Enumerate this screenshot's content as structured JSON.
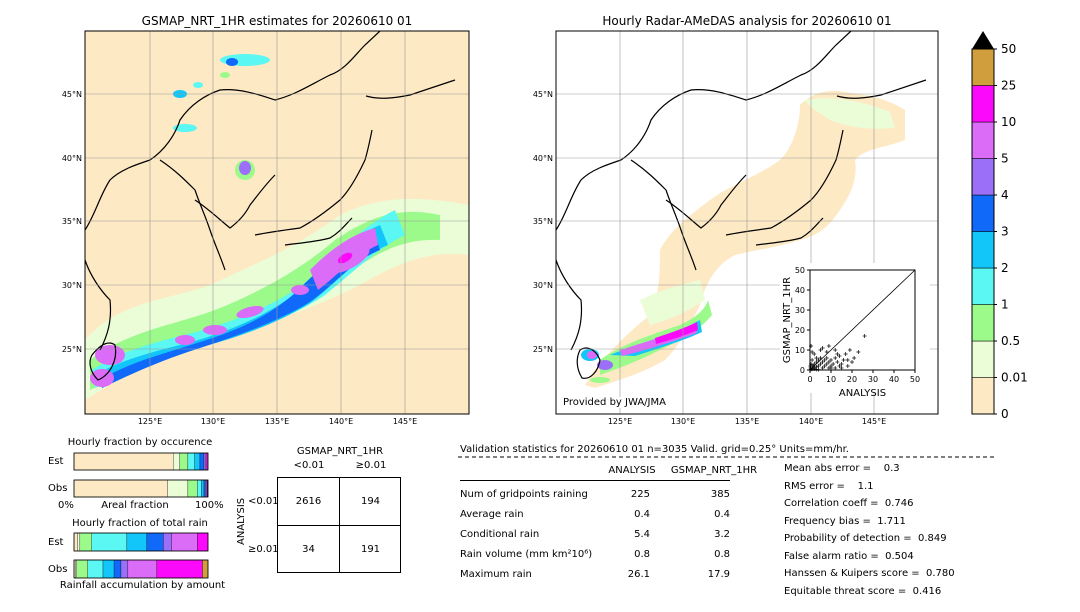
{
  "maps": {
    "left_title": "GSMAP_NRT_1HR estimates for 20260610 01",
    "right_title": "Hourly Radar-AMeDAS analysis for 20260610 01",
    "credit": "Provided by JWA/JMA",
    "lat_labels": [
      "45°N",
      "40°N",
      "35°N",
      "30°N",
      "25°N"
    ],
    "lon_labels": [
      "125°E",
      "130°E",
      "135°E",
      "140°E",
      "145°E"
    ],
    "ocean_color": "#fde9c4"
  },
  "colorbar": {
    "levels": [
      "0",
      "0.01",
      "0.5",
      "1",
      "2",
      "3",
      "4",
      "5",
      "10",
      "25",
      "50"
    ],
    "colors": [
      "#fde9c4",
      "#ebfdd7",
      "#9cfa8b",
      "#5bf7f2",
      "#13c6fa",
      "#1169fa",
      "#9c6ff8",
      "#da6cf7",
      "#fb09fa",
      "#d09e3c"
    ],
    "extend_color": "#000000"
  },
  "chart_data": [
    {
      "type": "scatter",
      "title": "",
      "xlabel": "ANALYSIS",
      "ylabel": "GSMAP_NRT_1HR",
      "xlim": [
        0,
        50
      ],
      "ylim": [
        0,
        50
      ],
      "ticks": [
        "0",
        "10",
        "20",
        "30",
        "40",
        "50"
      ],
      "reference_line": "y = x",
      "points": [
        [
          0.5,
          0.3
        ],
        [
          1,
          0.5
        ],
        [
          1.5,
          2
        ],
        [
          2,
          1
        ],
        [
          2,
          3
        ],
        [
          3,
          1.5
        ],
        [
          3,
          4
        ],
        [
          4,
          2
        ],
        [
          4,
          5
        ],
        [
          5,
          3
        ],
        [
          5,
          6
        ],
        [
          6,
          4
        ],
        [
          6,
          1
        ],
        [
          7,
          5
        ],
        [
          7,
          2
        ],
        [
          8,
          3
        ],
        [
          8,
          6
        ],
        [
          9,
          1
        ],
        [
          9,
          4
        ],
        [
          10,
          2
        ],
        [
          10,
          5
        ],
        [
          11,
          3
        ],
        [
          12,
          1
        ],
        [
          12,
          6
        ],
        [
          13,
          4
        ],
        [
          14,
          2
        ],
        [
          14,
          7
        ],
        [
          15,
          3
        ],
        [
          16,
          5
        ],
        [
          17,
          8
        ],
        [
          18,
          2
        ],
        [
          19,
          10
        ],
        [
          20,
          4
        ],
        [
          21,
          6
        ],
        [
          23,
          9
        ],
        [
          26,
          17
        ],
        [
          1,
          2
        ],
        [
          2,
          0.5
        ],
        [
          3,
          0.3
        ],
        [
          4,
          0.2
        ],
        [
          0.3,
          1
        ],
        [
          0.2,
          2
        ],
        [
          0.5,
          3
        ],
        [
          1,
          5
        ],
        [
          2,
          8
        ],
        [
          3,
          6
        ],
        [
          1,
          9
        ],
        [
          0.5,
          12
        ],
        [
          5,
          10
        ],
        [
          6,
          11
        ],
        [
          8,
          9
        ],
        [
          9,
          12
        ],
        [
          12,
          10
        ],
        [
          13,
          8
        ],
        [
          10,
          1
        ],
        [
          15,
          1
        ],
        [
          18,
          5
        ]
      ]
    },
    {
      "type": "bar",
      "title": "Hourly fraction by occurence",
      "categories": [
        "Est",
        "Obs"
      ],
      "xlabel": "Areal fraction",
      "xtick_labels": [
        "0%",
        "100%"
      ],
      "stacked": true,
      "series_colors": [
        "#fde9c4",
        "#ebfdd7",
        "#9cfa8b",
        "#5bf7f2",
        "#13c6fa",
        "#1169fa",
        "#9c6ff8",
        "#da6cf7",
        "#fb09fa",
        "#d09e3c"
      ],
      "values": [
        [
          0.74,
          0.05,
          0.06,
          0.05,
          0.04,
          0.03,
          0.01,
          0.01,
          0.01,
          0.0
        ],
        [
          0.7,
          0.15,
          0.07,
          0.03,
          0.02,
          0.01,
          0.01,
          0.005,
          0.005,
          0.0
        ]
      ]
    },
    {
      "type": "bar",
      "title": "Hourly fraction of total rain",
      "categories": [
        "Est",
        "Obs"
      ],
      "xlabel": "Rainfall accumulation by amount",
      "stacked": true,
      "series_colors": [
        "#fde9c4",
        "#ebfdd7",
        "#9cfa8b",
        "#5bf7f2",
        "#13c6fa",
        "#1169fa",
        "#9c6ff8",
        "#da6cf7",
        "#fb09fa",
        "#d09e3c"
      ],
      "values": [
        [
          0.03,
          0.02,
          0.1,
          0.3,
          0.17,
          0.14,
          0.07,
          0.22,
          0.09,
          0.0
        ],
        [
          0.01,
          0.01,
          0.08,
          0.11,
          0.08,
          0.05,
          0.05,
          0.21,
          0.33,
          0.04
        ]
      ]
    }
  ],
  "contingency": {
    "title": "GSMAP_NRT_1HR",
    "col_labels": [
      "<0.01",
      "≥0.01"
    ],
    "row_axis_label": "ANALYSIS",
    "row_labels": [
      "<0.01",
      "≥0.01"
    ],
    "cells": [
      [
        "2616",
        "194"
      ],
      [
        "34",
        "191"
      ]
    ]
  },
  "validation": {
    "header": "Validation statistics for 20260610 01  n=3035 Valid. grid=0.25° Units=mm/hr.",
    "col_analysis": "ANALYSIS",
    "col_gsmap": "GSMAP_NRT_1HR",
    "rows": [
      {
        "label": "Num of gridpoints raining",
        "analysis": "225",
        "gsmap": "385"
      },
      {
        "label": "Average rain",
        "analysis": "0.4",
        "gsmap": "0.4"
      },
      {
        "label": "Conditional rain",
        "analysis": "5.4",
        "gsmap": "3.2"
      },
      {
        "label": "Rain volume (mm km²10⁶)",
        "analysis": "0.8",
        "gsmap": "0.8"
      },
      {
        "label": "Maximum rain",
        "analysis": "26.1",
        "gsmap": "17.9"
      }
    ],
    "scores": [
      "Mean abs error =    0.3",
      "RMS error =    1.1",
      "Correlation coeff =  0.746",
      "Frequency bias =  1.711",
      "Probability of detection =  0.849",
      "False alarm ratio =  0.504",
      "Hanssen & Kuipers score =  0.780",
      "Equitable threat score =  0.416"
    ]
  }
}
